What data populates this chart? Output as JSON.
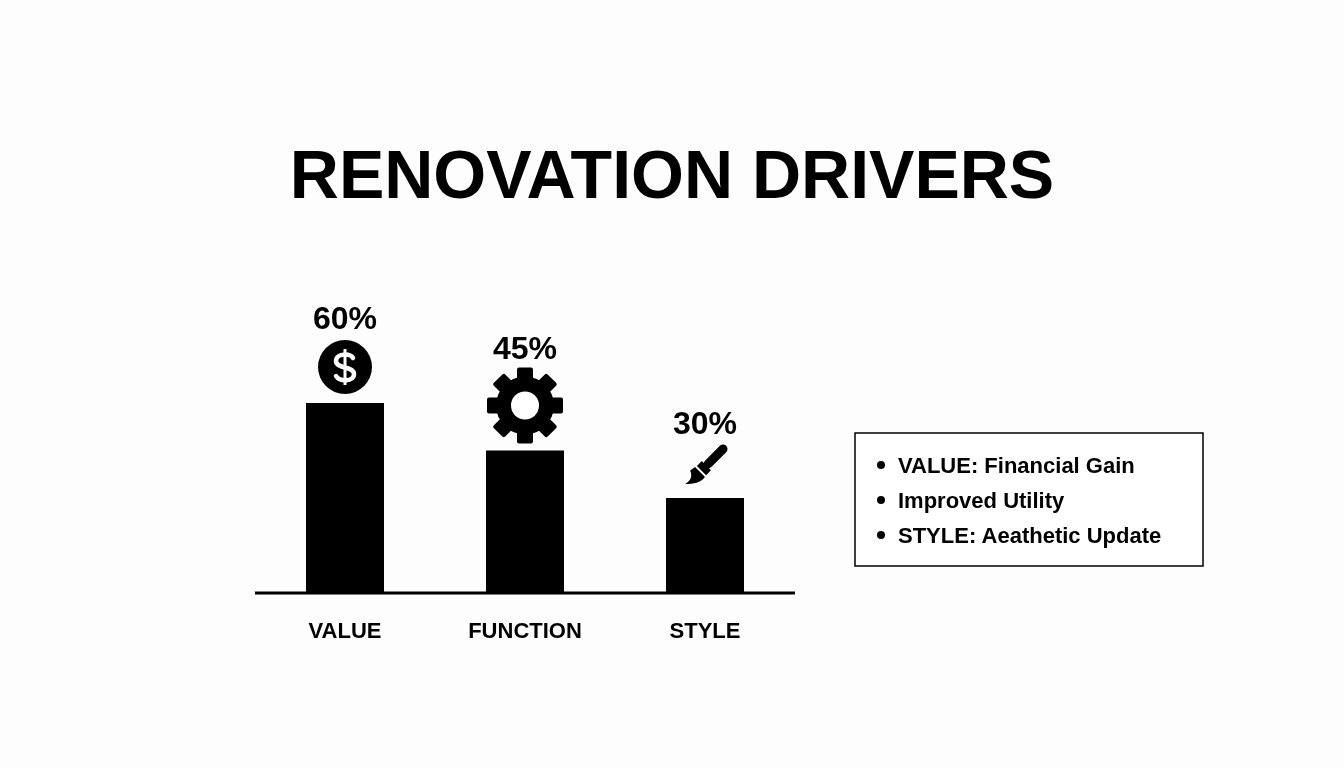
{
  "chart_data": {
    "type": "bar",
    "title": "RENOVATION DRIVERS",
    "categories": [
      "VALUE",
      "FUNCTION",
      "STYLE"
    ],
    "values": [
      60,
      45,
      30
    ],
    "value_labels": [
      "60%",
      "45%",
      "30%"
    ],
    "color": "#000000",
    "annotations": [
      "VALUE: Financial Gain",
      "Improved Utility",
      "STYLE: Aeathetic Update"
    ]
  }
}
